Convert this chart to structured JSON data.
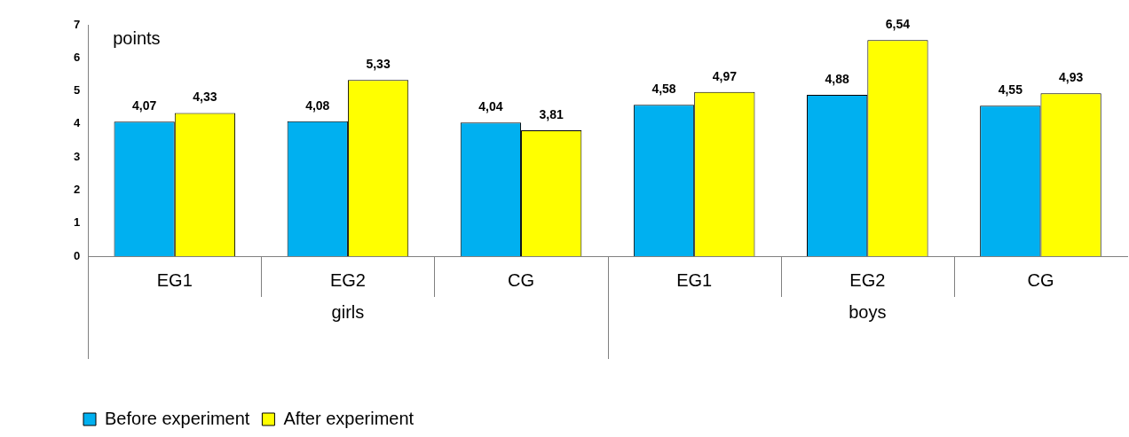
{
  "chart_data": {
    "type": "bar",
    "ylabel": "points",
    "categories": [
      "EG1",
      "EG2",
      "CG",
      "EG1",
      "EG2",
      "CG"
    ],
    "series": [
      {
        "name": "Before experiment",
        "color": "#00b0f0",
        "values": [
          4.07,
          4.08,
          4.04,
          4.58,
          4.88,
          4.55
        ],
        "value_labels": [
          "4,07",
          "4,08",
          "4,04",
          "4,58",
          "4,88",
          "4,55"
        ]
      },
      {
        "name": "After experiment",
        "color": "#ffff00",
        "values": [
          4.33,
          5.33,
          3.81,
          4.97,
          6.54,
          4.93
        ],
        "value_labels": [
          "4,33",
          "5,33",
          "3,81",
          "4,97",
          "6,54",
          "4,93"
        ]
      }
    ],
    "annotations": [
      "girls",
      "boys"
    ],
    "ylim": [
      0,
      7
    ],
    "yticks": [
      0,
      1,
      2,
      3,
      4,
      5,
      6,
      7
    ],
    "grid": false,
    "legend": "bottom"
  }
}
